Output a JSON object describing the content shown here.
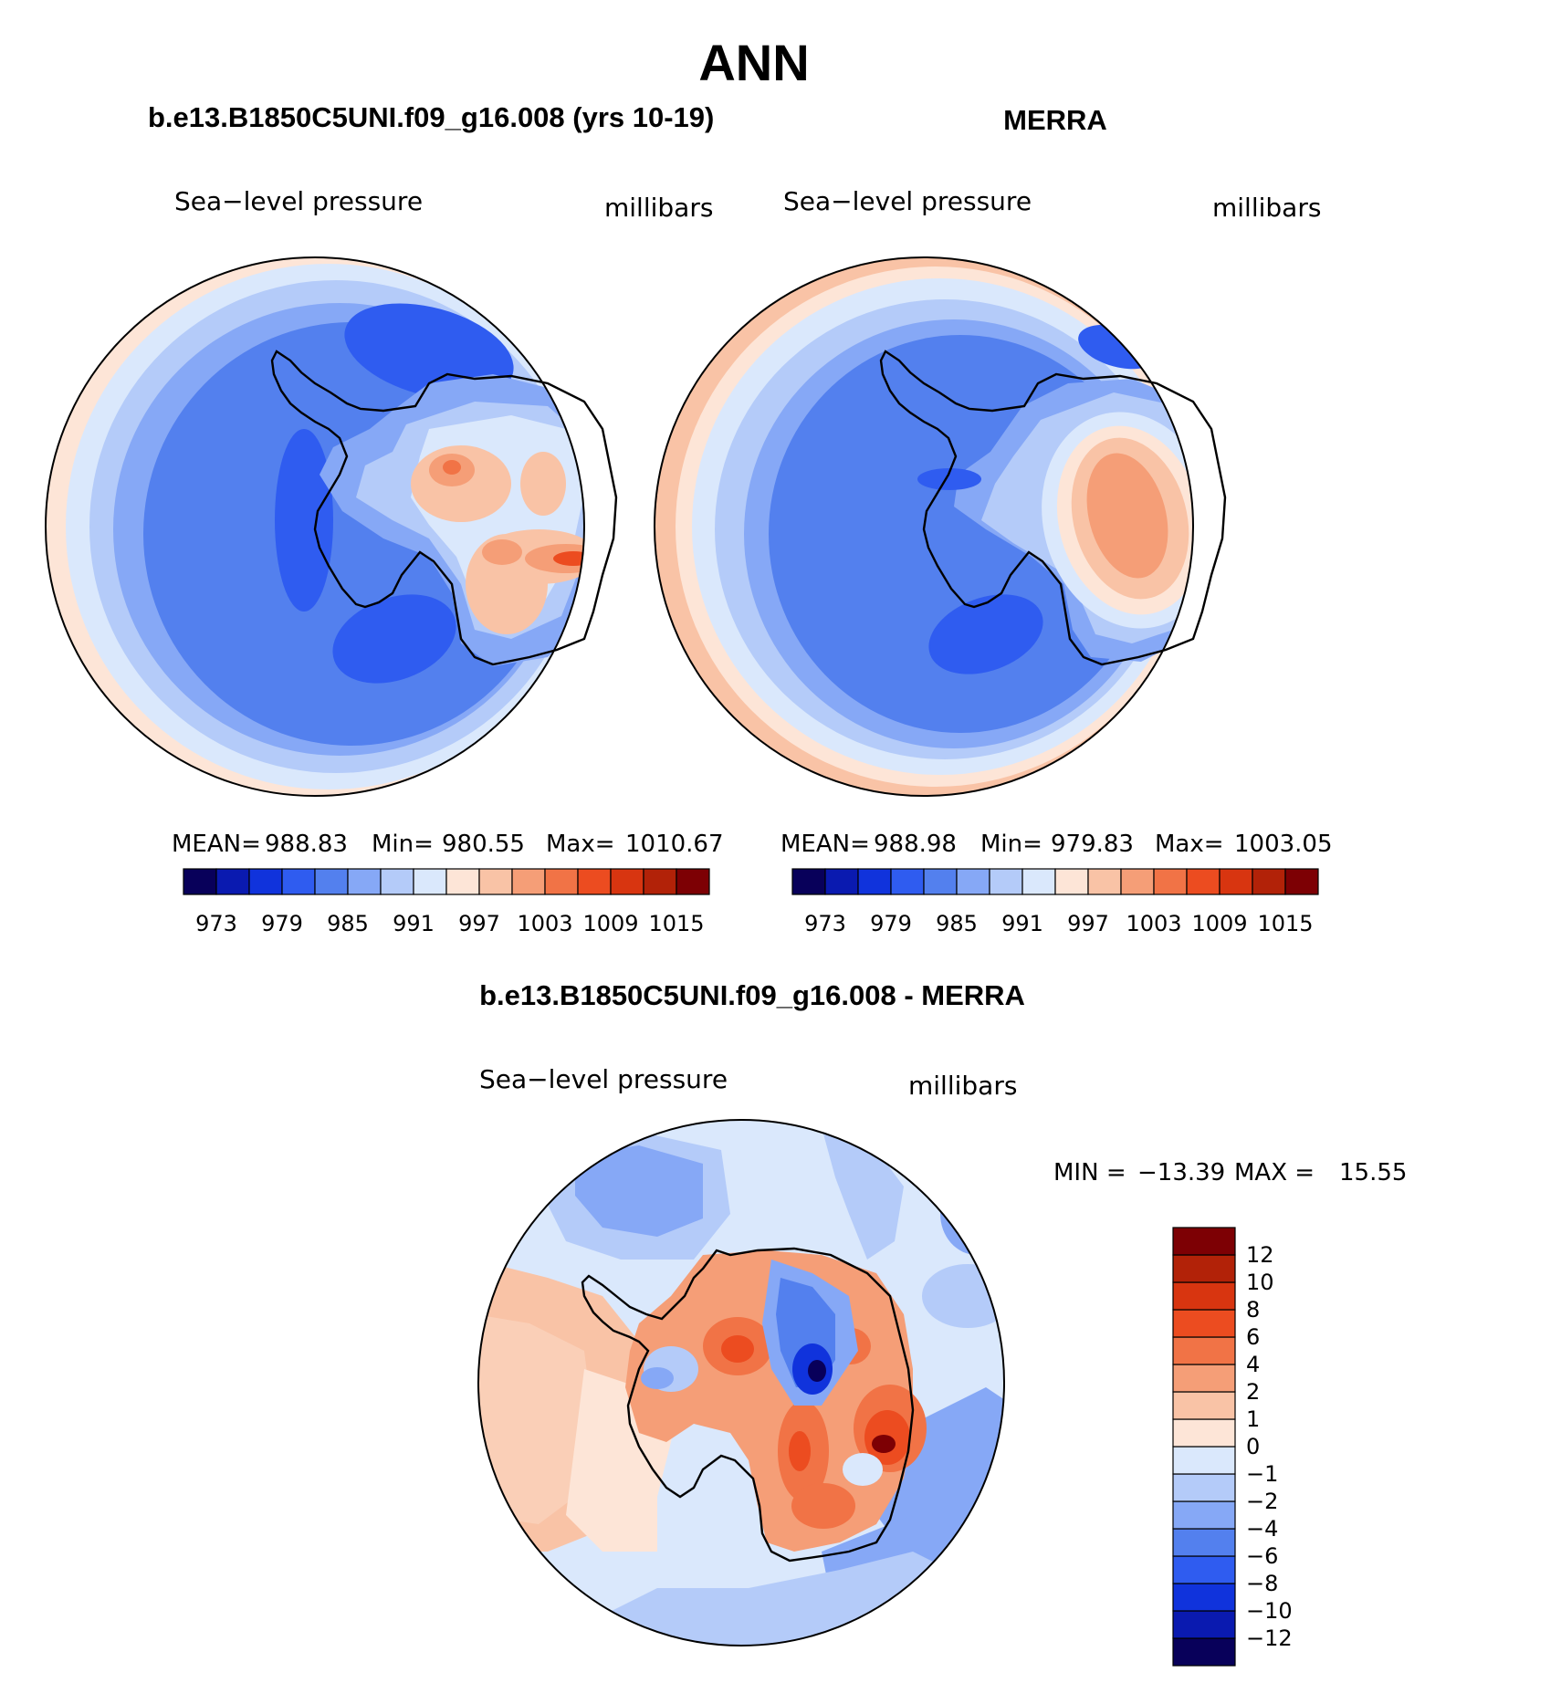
{
  "page": {
    "title": "ANN",
    "diff_title": "b.e13.B1850C5UNI.f09_g16.008 - MERRA"
  },
  "colors": {
    "abs_palette": [
      "#08005a",
      "#0a1ab0",
      "#1033dc",
      "#2f5cf0",
      "#5380ee",
      "#86a8f6",
      "#b4cbf9",
      "#dae8fc",
      "#fde5d7",
      "#f9c3a6",
      "#f59e77",
      "#f17346",
      "#ec4c20",
      "#d83510",
      "#b22208",
      "#7d0004"
    ],
    "diff_palette": [
      "#08005a",
      "#0a1ab0",
      "#1033dc",
      "#2f5cf0",
      "#5380ee",
      "#86a8f6",
      "#b4cbf9",
      "#dae8fc",
      "#fde5d7",
      "#f9c3a6",
      "#f59e77",
      "#f17346",
      "#ec4c20",
      "#d83510",
      "#b22208",
      "#7d0004"
    ]
  },
  "chart_data": [
    {
      "type": "contour-map",
      "id": "model",
      "title": "b.e13.B1850C5UNI.f09_g16.008 (yrs 10-19)",
      "left_label": "Sea−level pressure",
      "right_label": "millibars",
      "stats": {
        "mean_label": "MEAN=",
        "mean": "988.83",
        "min_label": "Min=",
        "min": "980.55",
        "max_label": "Max=",
        "max": "1010.67"
      },
      "colorbar": {
        "orientation": "horizontal",
        "ticks": [
          "973",
          "979",
          "985",
          "991",
          "997",
          "1003",
          "1009",
          "1015"
        ]
      }
    },
    {
      "type": "contour-map",
      "id": "obs",
      "title": "MERRA",
      "left_label": "Sea−level pressure",
      "right_label": "millibars",
      "stats": {
        "mean_label": "MEAN=",
        "mean": "988.98",
        "min_label": "Min=",
        "min": "979.83",
        "max_label": "Max=",
        "max": "1003.05"
      },
      "colorbar": {
        "orientation": "horizontal",
        "ticks": [
          "973",
          "979",
          "985",
          "991",
          "997",
          "1003",
          "1009",
          "1015"
        ]
      }
    },
    {
      "type": "contour-map",
      "id": "diff",
      "title": "b.e13.B1850C5UNI.f09_g16.008 - MERRA",
      "left_label": "Sea−level pressure",
      "right_label": "millibars",
      "stats": {
        "min_label": "MIN =",
        "min": "−13.39",
        "max_label": "MAX =",
        "max": "15.55"
      },
      "colorbar": {
        "orientation": "vertical",
        "ticks": [
          "12",
          "10",
          "8",
          "6",
          "4",
          "2",
          "1",
          "0",
          "−1",
          "−2",
          "−4",
          "−6",
          "−8",
          "−10",
          "−12"
        ]
      }
    }
  ]
}
